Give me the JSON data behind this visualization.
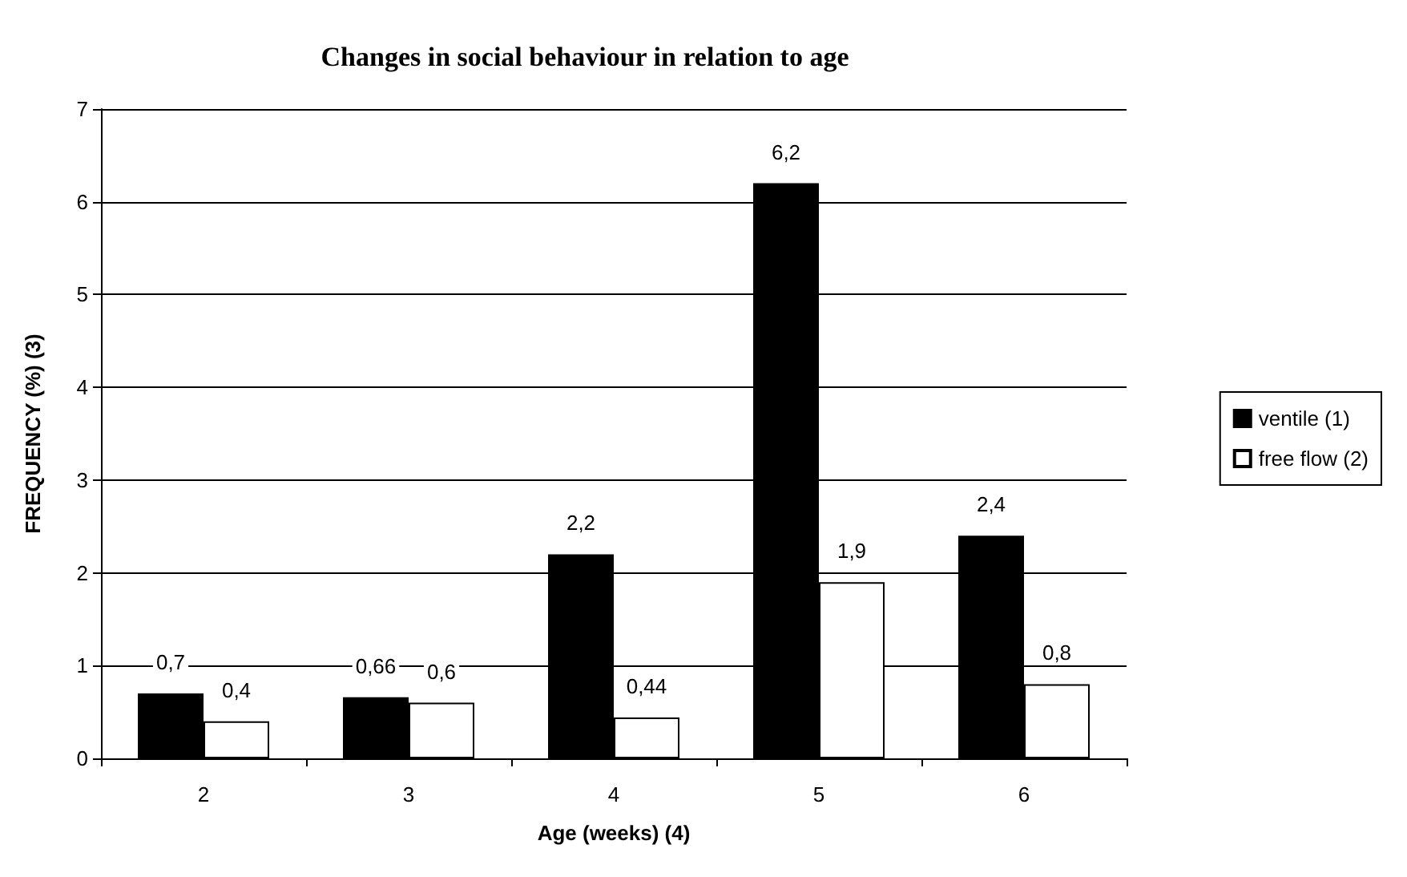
{
  "chart_data": {
    "type": "bar",
    "title": "Changes in social behaviour in relation to age",
    "xlabel": "Age (weeks) (4)",
    "ylabel": "FREQUENCY (%) (3)",
    "categories": [
      "2",
      "3",
      "4",
      "5",
      "6"
    ],
    "series": [
      {
        "name": "ventile (1)",
        "color": "#000000",
        "values": [
          0.7,
          0.66,
          2.2,
          6.2,
          2.4
        ],
        "value_labels": [
          "0,7",
          "0,66",
          "2,2",
          "6,2",
          "2,4"
        ]
      },
      {
        "name": "free flow (2)",
        "color": "#ffffff",
        "values": [
          0.4,
          0.6,
          0.44,
          1.9,
          0.8
        ],
        "value_labels": [
          "0,4",
          "0,6",
          "0,44",
          "1,9",
          "0,8"
        ]
      }
    ],
    "ylim": [
      0,
      7
    ],
    "yticks": [
      0,
      1,
      2,
      3,
      4,
      5,
      6,
      7
    ],
    "grid": "y",
    "legend": "right"
  }
}
